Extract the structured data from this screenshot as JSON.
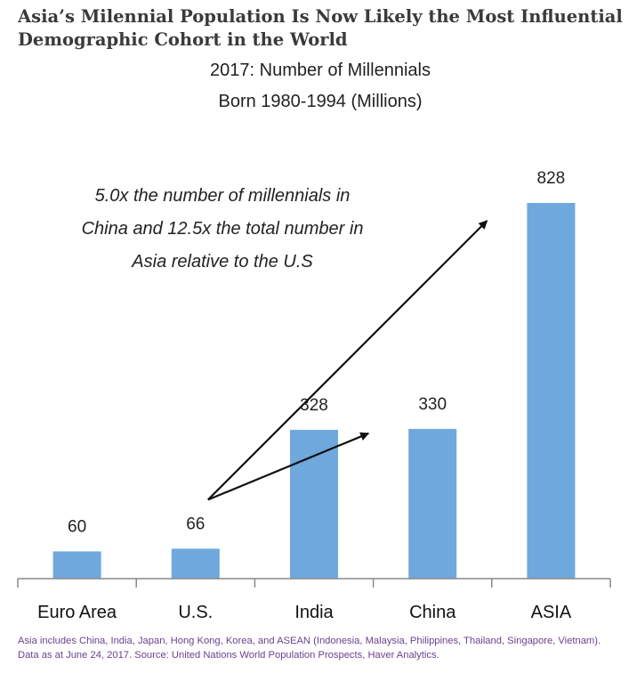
{
  "chart_data": {
    "type": "bar",
    "title": "Asia’s Milennial Population Is Now Likely the Most Influential Demographic Cohort in the World",
    "subtitle_line1": "2017: Number of Millennials",
    "subtitle_line2": "Born 1980-1994 (Millions)",
    "categories": [
      "Euro Area",
      "U.S.",
      "India",
      "China",
      "ASIA"
    ],
    "values": [
      60,
      66,
      328,
      330,
      828
    ],
    "data_labels": [
      "60",
      "66",
      "328",
      "330",
      "828"
    ],
    "ylim": [
      0,
      900
    ],
    "grid": false,
    "bar_color": "#6fa8dc",
    "annotation": {
      "line1": "5.0x the number of millennials in",
      "line2": "China and 12.5x the total number in",
      "line3": "Asia relative to the U.S"
    },
    "arrows": [
      {
        "from": "U.S.",
        "to": "China"
      },
      {
        "from": "U.S.",
        "to": "ASIA"
      }
    ],
    "footnote": "Asia includes China, India, Japan, Hong Kong, Korea, and ASEAN (Indonesia, Malaysia, Philippines, Thailand, Singapore, Vietnam). Data as at June 24, 2017. Source: United Nations World Population Prospects, Haver Analytics."
  }
}
